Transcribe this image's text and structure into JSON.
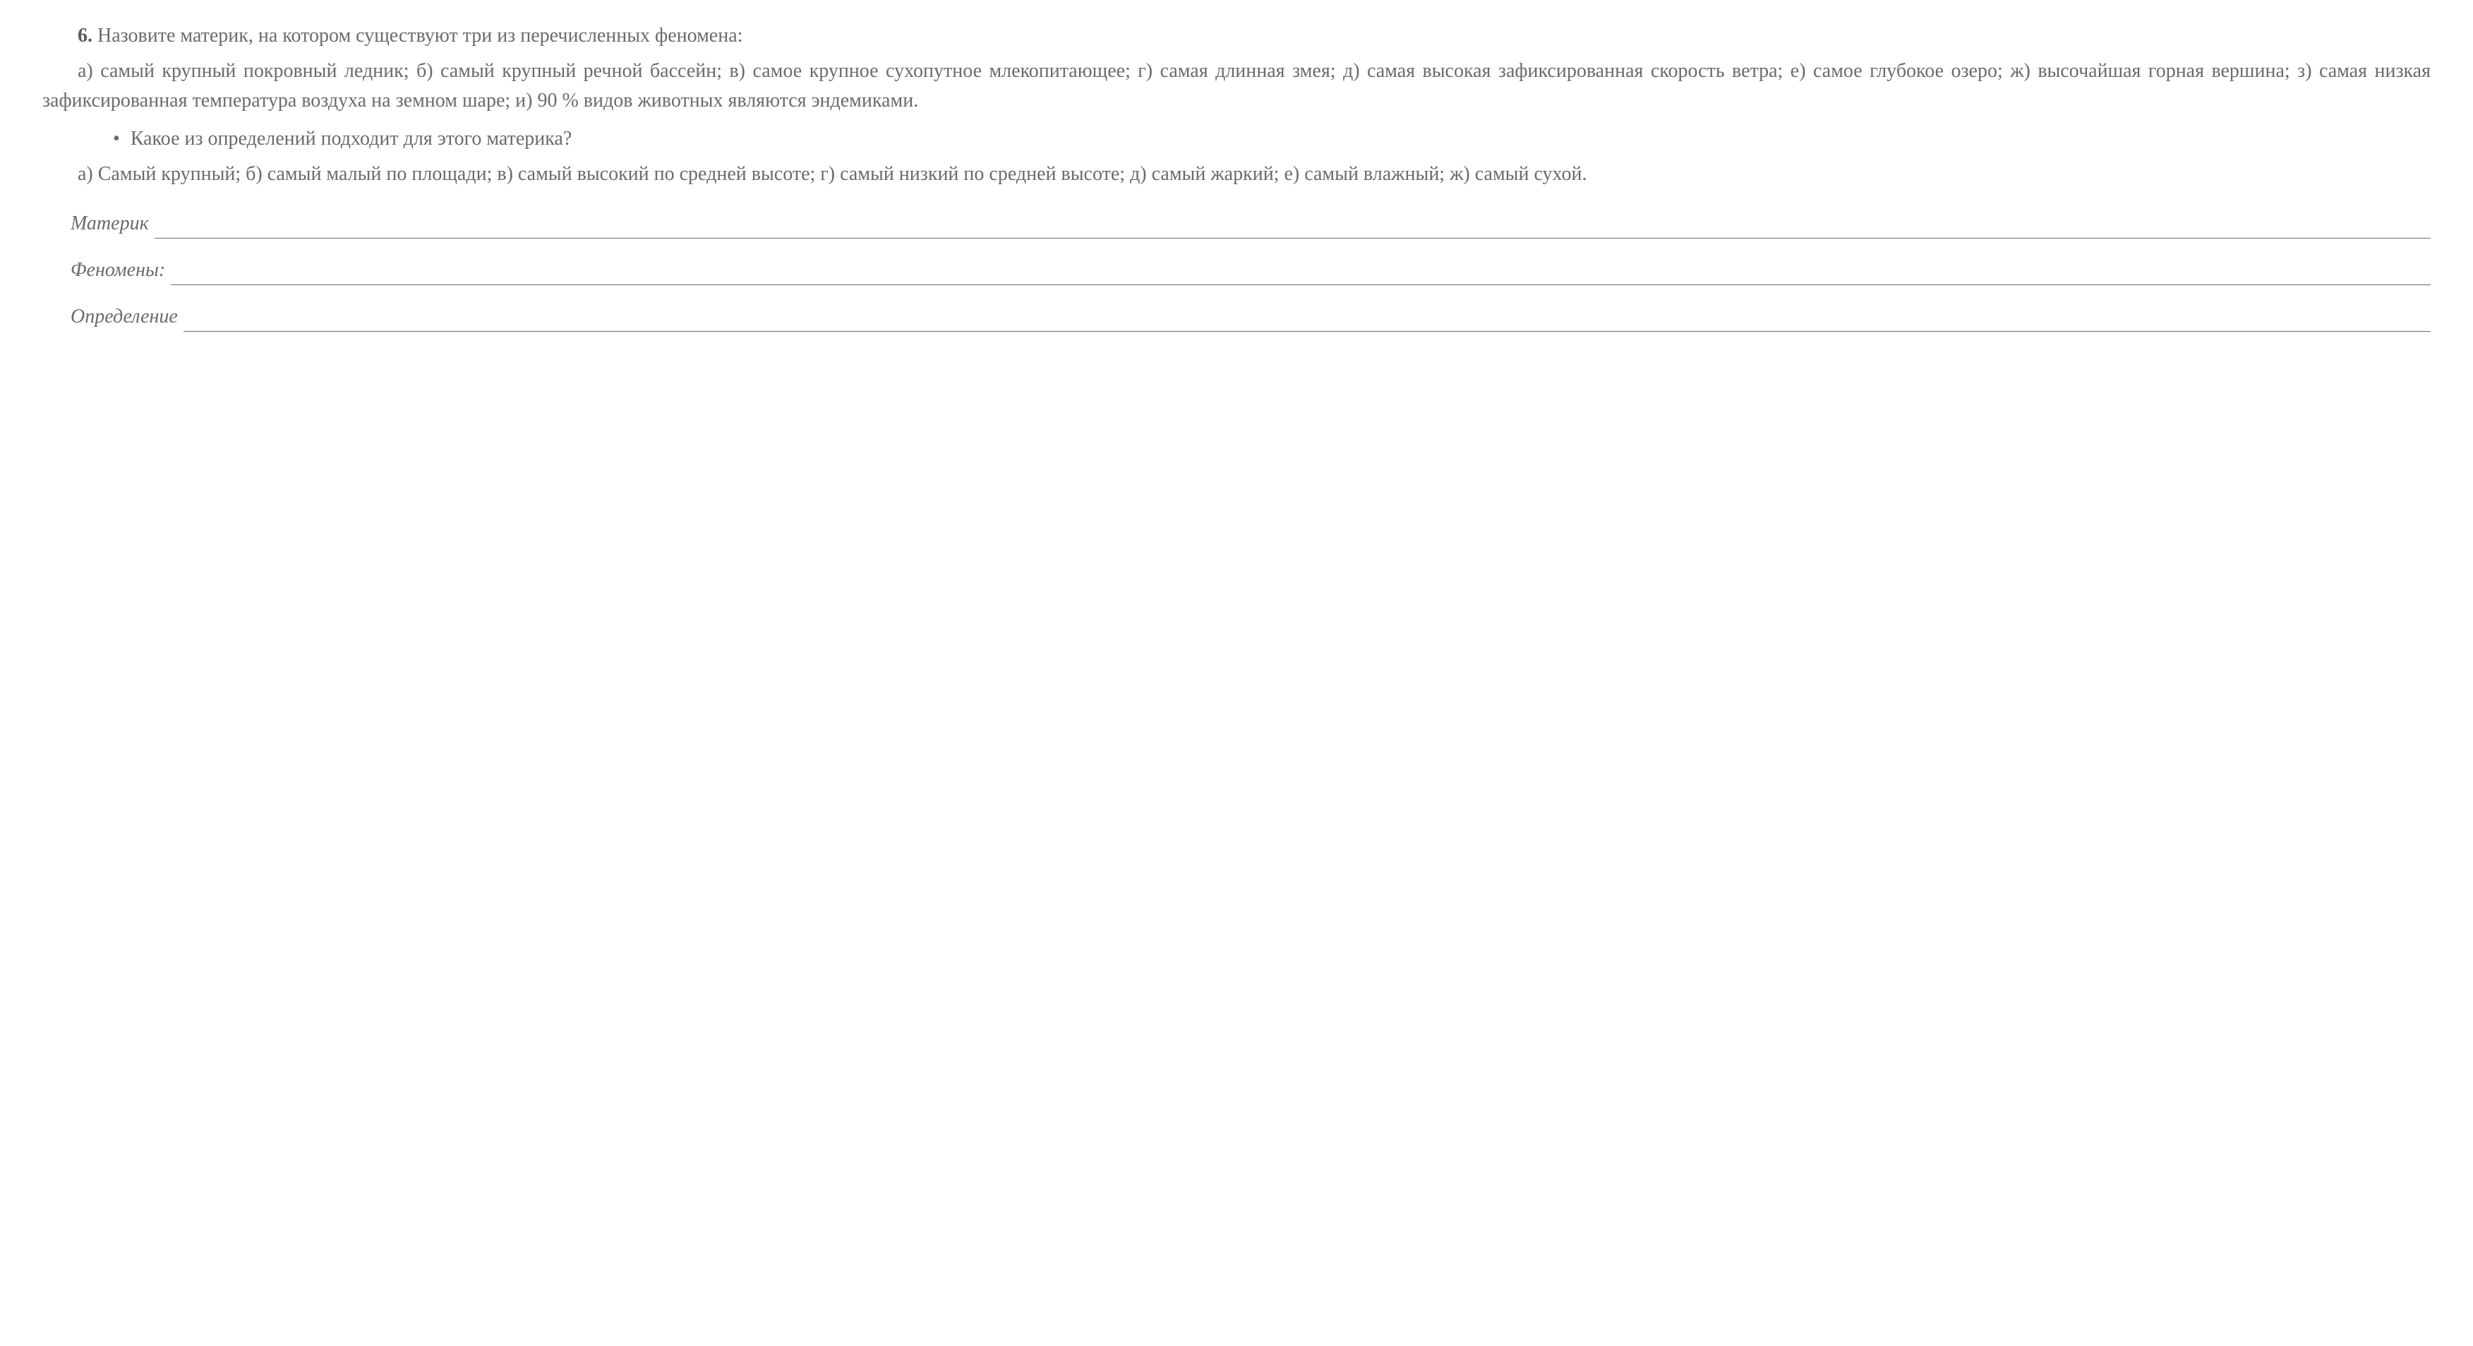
{
  "question": {
    "number": "6.",
    "main_text": "Назовите материк, на котором существуют три из перечисленных феномена:",
    "options_text": "а) самый крупный покровный ледник; б) самый крупный речной бассейн; в) самое крупное сухопутное млекопитающее; г) самая длинная змея; д) самая высокая зафиксированная скорость ветра; е) самое глубокое озеро; ж) высочайшая горная вершина; з) самая низкая зафиксированная температура воздуха на земном шаре; и) 90 % видов животных являются эндемиками.",
    "bullet_question": "Какое из определений подходит для этого материка?",
    "definition_options": "а) Самый крупный; б) самый малый по площади; в) самый высокий по средней высоте; г) самый низкий по средней высоте; д) самый жаркий; е) самый влажный; ж) самый сухой."
  },
  "answers": {
    "continent_label": "Материк",
    "phenomena_label": "Феномены:",
    "definition_label": "Определение"
  },
  "styling": {
    "text_color": "#6b6b6b",
    "background_color": "#ffffff",
    "font_size": 28,
    "line_height": 1.5,
    "underline_color": "#6b6b6b",
    "bold_color": "#5a5a5a"
  }
}
